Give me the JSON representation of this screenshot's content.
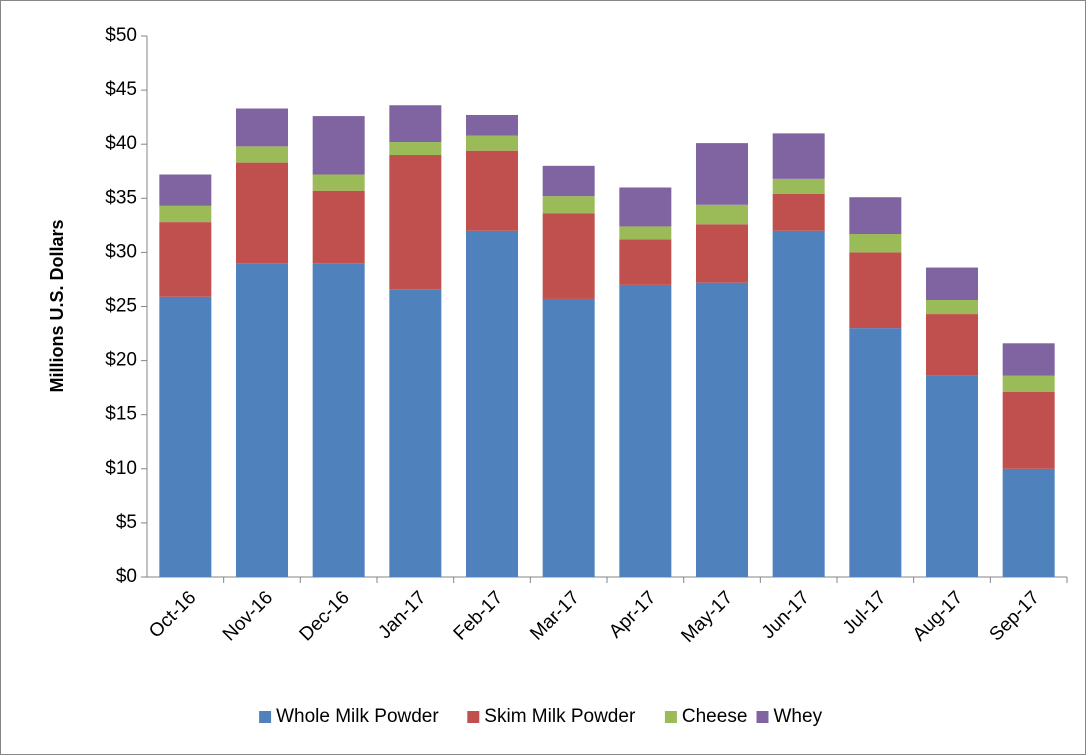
{
  "chart_data": {
    "type": "stacked_bar",
    "ylabel": "Millions U.S. Dollars",
    "categories": [
      "Oct-16",
      "Nov-16",
      "Dec-16",
      "Jan-17",
      "Feb-17",
      "Mar-17",
      "Apr-17",
      "May-17",
      "Jun-17",
      "Jul-17",
      "Aug-17",
      "Sep-17"
    ],
    "series": [
      {
        "name": "Whole Milk Powder",
        "color": "#4f81bd",
        "values": [
          25.9,
          29,
          29,
          26.6,
          32,
          25.7,
          27,
          27.2,
          32,
          23,
          18.6,
          10
        ]
      },
      {
        "name": "Skim Milk Powder",
        "color": "#c0504d",
        "values": [
          6.9,
          9.3,
          6.7,
          12.4,
          7.4,
          7.9,
          4.2,
          5.4,
          3.4,
          7,
          5.7,
          7.1
        ]
      },
      {
        "name": "Cheese",
        "color": "#9bbb59",
        "values": [
          1.5,
          1.5,
          1.5,
          1.2,
          1.4,
          1.6,
          1.2,
          1.8,
          1.4,
          1.7,
          1.3,
          1.5
        ]
      },
      {
        "name": "Whey",
        "color": "#8064a2",
        "values": [
          2.9,
          3.5,
          5.4,
          3.4,
          1.9,
          2.8,
          3.6,
          5.7,
          4.2,
          3.4,
          3,
          3
        ]
      }
    ],
    "ylim": [
      0,
      50
    ],
    "yticks": [
      {
        "value": 0,
        "label": "$0"
      },
      {
        "value": 5,
        "label": "$5"
      },
      {
        "value": 10,
        "label": "$10"
      },
      {
        "value": 15,
        "label": "$15"
      },
      {
        "value": 20,
        "label": "$20"
      },
      {
        "value": 25,
        "label": "$25"
      },
      {
        "value": 30,
        "label": "$30"
      },
      {
        "value": 35,
        "label": "$35"
      },
      {
        "value": 40,
        "label": "$40"
      },
      {
        "value": 45,
        "label": "$45"
      },
      {
        "value": 50,
        "label": "$50"
      }
    ],
    "grid": false,
    "legend": "bottom"
  }
}
